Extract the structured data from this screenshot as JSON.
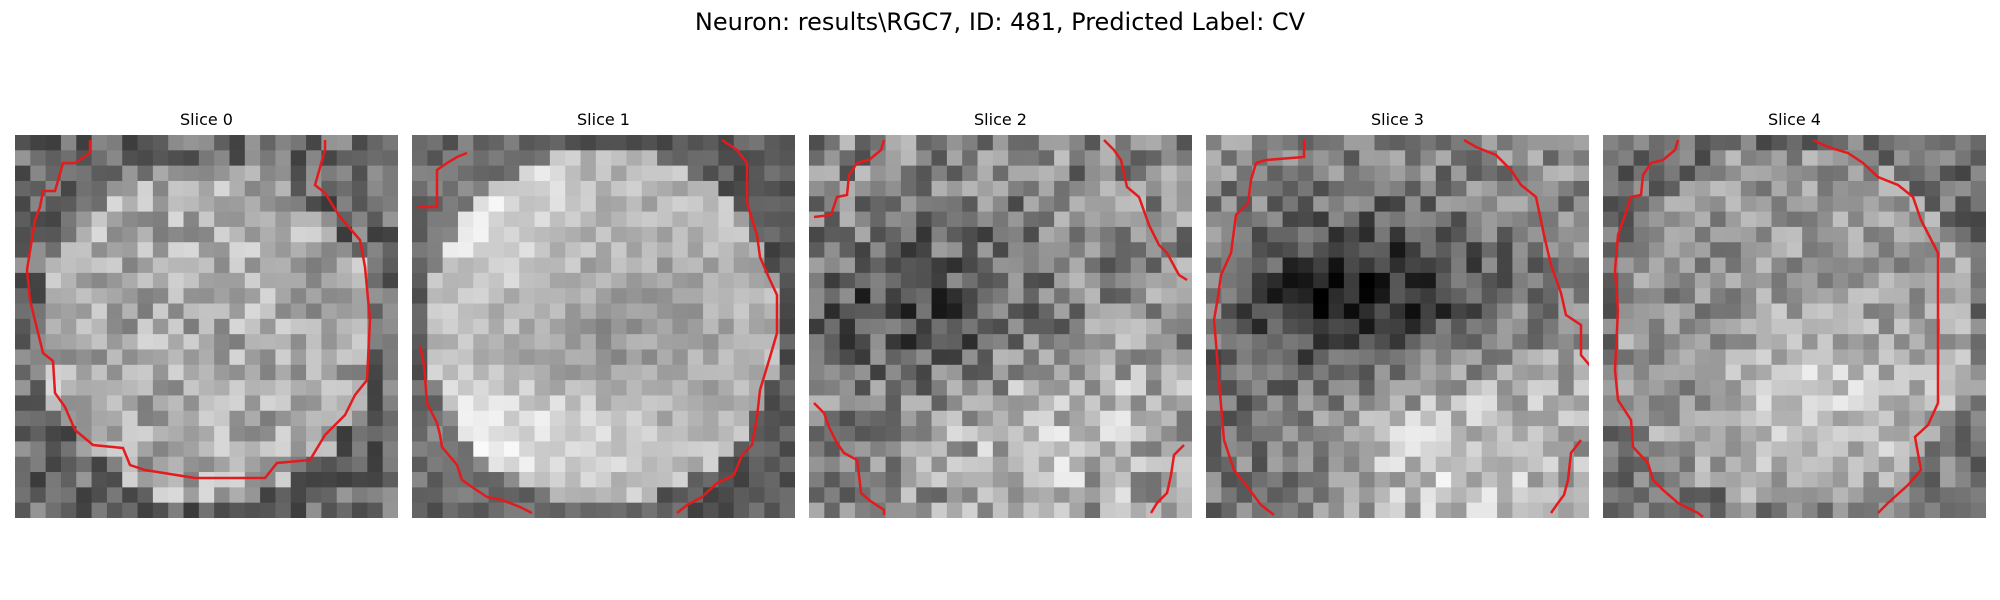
{
  "figure": {
    "title": "Neuron: results\\RGC7, ID: 481, Predicted Label: CV"
  },
  "panels": [
    {
      "title": "Slice 0"
    },
    {
      "title": "Slice 1"
    },
    {
      "title": "Slice 2"
    },
    {
      "title": "Slice 3"
    },
    {
      "title": "Slice 4"
    }
  ],
  "colors": {
    "contour": "#e41a1c",
    "background": "#ffffff"
  }
}
